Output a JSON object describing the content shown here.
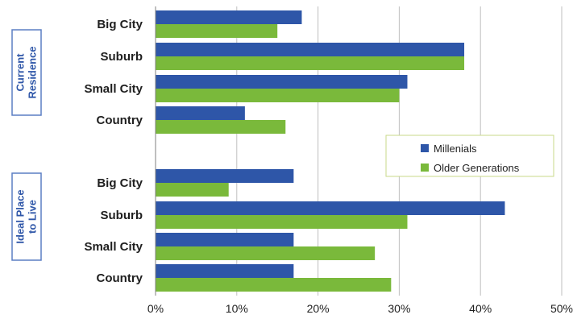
{
  "chart_data": {
    "type": "bar",
    "orientation": "horizontal",
    "groups": [
      {
        "label": "Current Residence",
        "label_lines": [
          "Current",
          "Residence"
        ],
        "categories": [
          "Big City",
          "Suburb",
          "Small City",
          "Country"
        ]
      },
      {
        "label": "Ideal Place to Live",
        "label_lines": [
          "Ideal Place",
          "to Live"
        ],
        "categories": [
          "Big City",
          "Suburb",
          "Small City",
          "Country"
        ]
      }
    ],
    "series": [
      {
        "name": "Millenials",
        "color": "#2e56a8",
        "values": [
          18,
          38,
          31,
          11,
          17,
          43,
          17,
          17
        ]
      },
      {
        "name": "Older Generations",
        "color": "#7ab93b",
        "values": [
          15,
          38,
          30,
          16,
          9,
          31,
          27,
          29
        ]
      }
    ],
    "x_ticks": [
      "0%",
      "10%",
      "20%",
      "30%",
      "40%",
      "50%"
    ],
    "xlim": [
      0,
      50
    ],
    "unit": "%",
    "grid": true,
    "legend_position": "right-middle"
  },
  "colors": {
    "millenials": "#2e56a8",
    "older_generations": "#7ab93b",
    "grid": "#bfbfbf",
    "axis": "#7f7f7f"
  }
}
